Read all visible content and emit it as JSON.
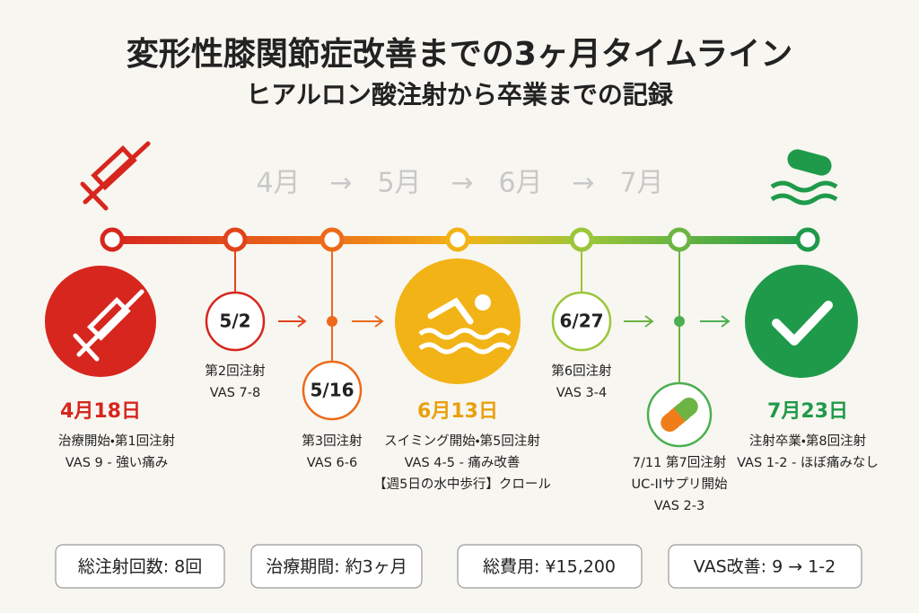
{
  "header": {
    "title": "変形性膝関節症改善までの3ヶ月タイムライン",
    "subtitle": "ヒアルロン酸注射から卒業までの記録"
  },
  "months": [
    "4月",
    "5月",
    "6月",
    "7月"
  ],
  "month_arrow": "→",
  "events": [
    {
      "date": "4月18日",
      "lines": [
        "治療開始・第1回注射",
        "VAS 9 - 強い痛み"
      ]
    },
    {
      "date": "5/2",
      "lines": [
        "第2回注射",
        "VAS 7-8"
      ]
    },
    {
      "date": "5/16",
      "lines": [
        "第3回注射",
        "VAS 6-6"
      ]
    },
    {
      "date": "6月13日",
      "lines": [
        "スイミング開始・第5回注射",
        "VAS 4-5 - 痛み改善",
        "【週5日の水中歩行】クロール"
      ]
    },
    {
      "date": "6/27",
      "lines": [
        "第6回注射",
        "VAS 3-4"
      ]
    },
    {
      "date": "7/11 第7回注射",
      "lines": [
        "UC-IIサプリ開始",
        "VAS 2-3"
      ]
    },
    {
      "date": "7月23日",
      "lines": [
        "注射卒業・第8回注射",
        "VAS 1-2 - ほぼ痛みなし"
      ]
    }
  ],
  "summary": [
    "総注射回数: 8回",
    "治療期間: 約3ヶ月",
    "総費用: ¥15,200",
    "VAS改善: 9 → 1-2"
  ]
}
